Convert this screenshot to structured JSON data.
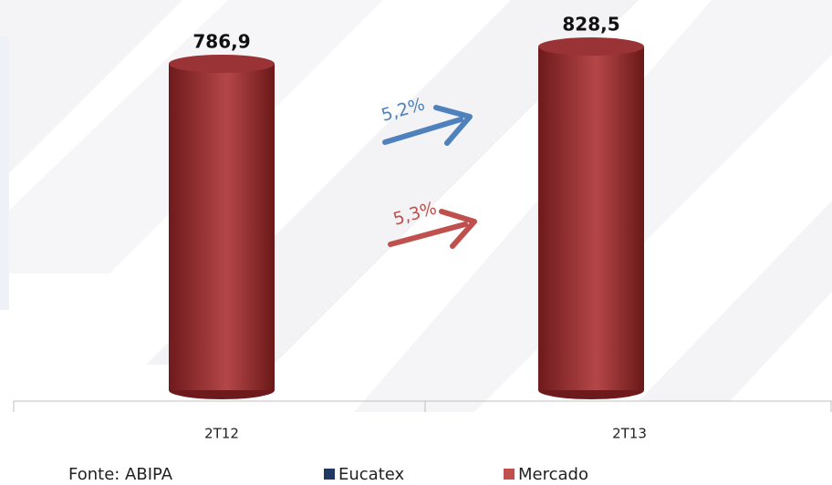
{
  "chart_data": {
    "type": "bar",
    "categories": [
      "2T12",
      "2T13"
    ],
    "series": [
      {
        "name": "Eucatex",
        "color": "#1f3864",
        "values": [
          null,
          null
        ]
      },
      {
        "name": "Mercado",
        "color": "#c0504d",
        "values": [
          786.9,
          828.5
        ],
        "value_labels": [
          "786,9",
          "828,5"
        ]
      }
    ],
    "annotations": [
      {
        "text": "5,2%",
        "color": "#4f81bd"
      },
      {
        "text": "5,3%",
        "color": "#c0504d"
      }
    ],
    "source": "Fonte: ABIPA"
  }
}
